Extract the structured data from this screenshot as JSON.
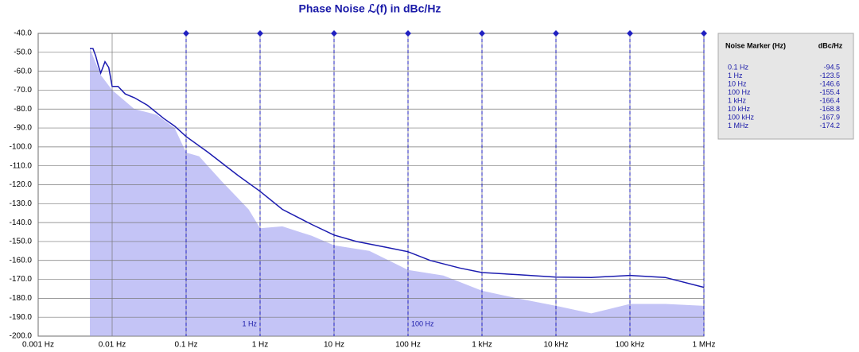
{
  "chart_data": {
    "type": "line",
    "title": "Phase Noise ℒ(f) in dBc/Hz",
    "log_x": true,
    "grid": true,
    "xlim": [
      0.001,
      1000000
    ],
    "ylim": [
      -200,
      -40
    ],
    "xticks": [
      {
        "value": 0.001,
        "label": "0.001 Hz"
      },
      {
        "value": 0.01,
        "label": "0.01 Hz"
      },
      {
        "value": 0.1,
        "label": "0.1 Hz"
      },
      {
        "value": 1,
        "label": "1 Hz"
      },
      {
        "value": 10,
        "label": "10 Hz"
      },
      {
        "value": 100,
        "label": "100 Hz"
      },
      {
        "value": 1000,
        "label": "1 kHz"
      },
      {
        "value": 10000,
        "label": "10 kHz"
      },
      {
        "value": 100000,
        "label": "100 kHz"
      },
      {
        "value": 1000000,
        "label": "1 MHz"
      }
    ],
    "yticks": [
      {
        "value": -40,
        "label": "-40.0"
      },
      {
        "value": -50,
        "label": "-50.0"
      },
      {
        "value": -60,
        "label": "-60.0"
      },
      {
        "value": -70,
        "label": "-70.0"
      },
      {
        "value": -80,
        "label": "-80.0"
      },
      {
        "value": -90,
        "label": "-90.0"
      },
      {
        "value": -100,
        "label": "-100.0"
      },
      {
        "value": -110,
        "label": "-110.0"
      },
      {
        "value": -120,
        "label": "-120.0"
      },
      {
        "value": -130,
        "label": "-130.0"
      },
      {
        "value": -140,
        "label": "-140.0"
      },
      {
        "value": -150,
        "label": "-150.0"
      },
      {
        "value": -160,
        "label": "-160.0"
      },
      {
        "value": -170,
        "label": "-170.0"
      },
      {
        "value": -180,
        "label": "-180.0"
      },
      {
        "value": -190,
        "label": "-190.0"
      },
      {
        "value": -200,
        "label": "-200.0"
      }
    ],
    "series": [
      {
        "style": "area",
        "color": "#c4c4f6",
        "x": [
          0.005,
          0.007,
          0.01,
          0.02,
          0.04,
          0.07,
          0.1,
          0.15,
          0.3,
          0.7,
          1,
          2,
          5,
          10,
          30,
          100,
          300,
          1000,
          3000,
          10000,
          30000,
          100000,
          300000,
          1000000
        ],
        "values": [
          -48,
          -62,
          -70,
          -80,
          -83,
          -90,
          -103,
          -105,
          -118,
          -133,
          -143,
          -142,
          -147,
          -152,
          -155,
          -165,
          -168,
          -176,
          -180,
          -184,
          -188,
          -183,
          -183,
          -184
        ]
      },
      {
        "style": "line",
        "color": "#1c1cb0",
        "x": [
          0.005,
          0.0055,
          0.006,
          0.0065,
          0.007,
          0.008,
          0.009,
          0.01,
          0.012,
          0.015,
          0.02,
          0.03,
          0.05,
          0.07,
          0.1,
          0.2,
          0.5,
          1,
          2,
          5,
          10,
          20,
          50,
          100,
          200,
          500,
          1000,
          3000,
          10000,
          30000,
          100000,
          300000,
          1000000
        ],
        "values": [
          -48,
          -48,
          -52,
          -57,
          -61,
          -55,
          -58,
          -68,
          -68,
          -72,
          -74,
          -78,
          -85,
          -89,
          -94.5,
          -103,
          -115,
          -123.5,
          -133,
          -141,
          -146.6,
          -150,
          -153,
          -155.4,
          -160,
          -164,
          -166.4,
          -167.5,
          -168.8,
          -169,
          -167.9,
          -169,
          -174.2
        ]
      }
    ],
    "markers": {
      "header": [
        "Noise Marker (Hz)",
        "dBc/Hz"
      ],
      "color": "#2020c0",
      "x": [
        0.1,
        1,
        10,
        100,
        1000,
        10000,
        100000,
        1000000
      ],
      "labels": [
        "0.1 Hz",
        "1 Hz",
        "10 Hz",
        "100 Hz",
        "1 kHz",
        "10 kHz",
        "100 kHz",
        "1 MHz"
      ],
      "values": [
        -94.5,
        -123.5,
        -146.6,
        -155.4,
        -166.4,
        -168.8,
        -167.9,
        -174.2
      ]
    }
  }
}
